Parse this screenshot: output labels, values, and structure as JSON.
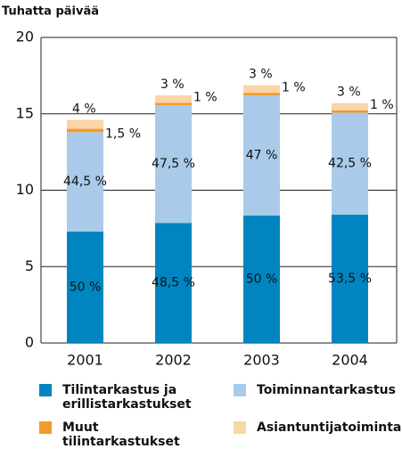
{
  "chart_data": {
    "type": "stacked_bar",
    "title": "Tuhatta päivää",
    "categories": [
      "2001",
      "2002",
      "2003",
      "2004"
    ],
    "series": [
      {
        "name": "Tilintarkastus ja erillistarkastukset",
        "color": "#0085c0",
        "values": [
          7.3,
          7.86,
          8.35,
          8.4
        ],
        "percent_labels": [
          "50 %",
          "48,5 %",
          "50 %",
          "53,5 %"
        ]
      },
      {
        "name": "Toiminnantarkastus",
        "color": "#a9cbe9",
        "values": [
          6.5,
          7.7,
          7.85,
          6.67
        ],
        "percent_labels": [
          "44,5 %",
          "47,5 %",
          "47 %",
          "42,5 %"
        ]
      },
      {
        "name": "Muut tilintarkastukset",
        "color": "#f39a2b",
        "values": [
          0.22,
          0.16,
          0.17,
          0.16
        ],
        "percent_labels": [
          "1,5 %",
          "1 %",
          "1 %",
          "1 %"
        ]
      },
      {
        "name": "Asiantuntijatoiminta",
        "color": "#fbd5a8",
        "values": [
          0.58,
          0.49,
          0.5,
          0.47
        ],
        "percent_labels": [
          "4 %",
          "3 %",
          "3 %",
          "3 %"
        ]
      }
    ],
    "ylim": [
      0,
      20
    ],
    "yticks": [
      0,
      5,
      10,
      15,
      20
    ],
    "grid": true
  }
}
